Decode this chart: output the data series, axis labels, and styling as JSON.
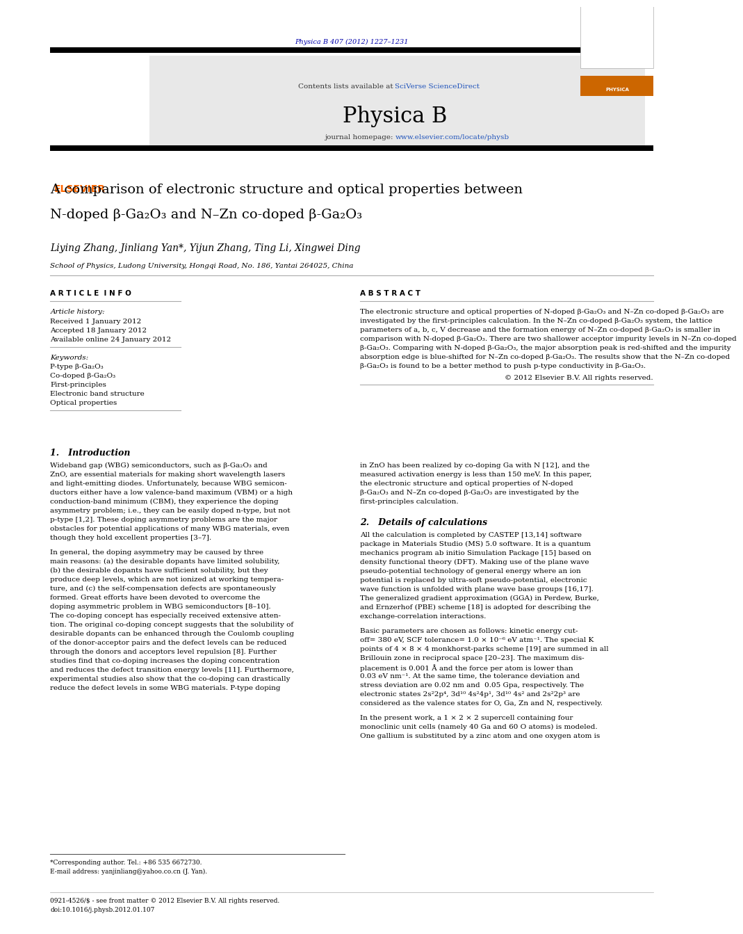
{
  "page_width": 9.92,
  "page_height": 13.23,
  "bg_color": "#ffffff",
  "header_journal_ref": "Physica B 407 (2012) 1227–1231",
  "header_journal_ref_color": "#0000aa",
  "journal_bg_color": "#e8e8e8",
  "journal_name": "Physica B",
  "journal_contents": "Contents lists available at",
  "sciverse_text": "SciVerse ScienceDirect",
  "title_line1": "A comparison of electronic structure and optical properties between",
  "title_line2": "N-doped β-Ga₂O₃ and N–Zn co-doped β-Ga₂O₃",
  "authors": "Liying Zhang, Jinliang Yan*, Yijun Zhang, Ting Li, Xingwei Ding",
  "affiliation": "School of Physics, Ludong University, Hongqi Road, No. 186, Yantai 264025, China",
  "article_info_title": "A R T I C L E  I N F O",
  "abstract_title": "A B S T R A C T",
  "article_history_label": "Article history:",
  "received": "Received 1 January 2012",
  "accepted": "Accepted 18 January 2012",
  "available": "Available online 24 January 2012",
  "keywords_label": "Keywords:",
  "keyword1": "P-type β-Ga₂O₃",
  "keyword2": "Co-doped β-Ga₂O₃",
  "keyword3": "First-principles",
  "keyword4": "Electronic band structure",
  "keyword5": "Optical properties",
  "copyright": "© 2012 Elsevier B.V. All rights reserved.",
  "section1_title": "1.   Introduction",
  "section2_title": "2.   Details of calculations",
  "footnote": "*Corresponding author. Tel.: +86 535 6672730.",
  "footnote_email": "E-mail address: yanjinliang@yahoo.co.cn (J. Yan).",
  "footer_line1": "0921-4526/$ - see front matter © 2012 Elsevier B.V. All rights reserved.",
  "footer_line2": "doi:10.1016/j.physb.2012.01.107",
  "abstract_lines": [
    "The electronic structure and optical properties of N-doped β-Ga₂O₃ and N–Zn co-doped β-Ga₂O₃ are",
    "investigated by the first-principles calculation. In the N–Zn co-doped β-Ga₂O₃ system, the lattice",
    "parameters of a, b, c, V decrease and the formation energy of N–Zn co-doped β-Ga₂O₃ is smaller in",
    "comparison with N-doped β-Ga₂O₃. There are two shallower acceptor impurity levels in N–Zn co-doped",
    "β-Ga₂O₃. Comparing with N-doped β-Ga₂O₃, the major absorption peak is red-shifted and the impurity",
    "absorption edge is blue-shifted for N–Zn co-doped β-Ga₂O₃. The results show that the N–Zn co-doped",
    "β-Ga₂O₃ is found to be a better method to push p-type conductivity in β-Ga₂O₃."
  ],
  "intro_col1_p1": [
    "Wideband gap (WBG) semiconductors, such as β-Ga₂O₃ and",
    "ZnO, are essential materials for making short wavelength lasers",
    "and light-emitting diodes. Unfortunately, because WBG semicon-",
    "ductors either have a low valence-band maximum (VBM) or a high",
    "conduction-band minimum (CBM), they experience the doping",
    "asymmetry problem; i.e., they can be easily doped n-type, but not",
    "p-type [1,2]. These doping asymmetry problems are the major",
    "obstacles for potential applications of many WBG materials, even",
    "though they hold excellent properties [3–7]."
  ],
  "intro_col1_p2": [
    "In general, the doping asymmetry may be caused by three",
    "main reasons: (a) the desirable dopants have limited solubility,",
    "(b) the desirable dopants have sufficient solubility, but they",
    "produce deep levels, which are not ionized at working tempera-",
    "ture, and (c) the self-compensation defects are spontaneously",
    "formed. Great efforts have been devoted to overcome the",
    "doping asymmetric problem in WBG semiconductors [8–10].",
    "The co-doping concept has especially received extensive atten-",
    "tion. The original co-doping concept suggests that the solubility of",
    "desirable dopants can be enhanced through the Coulomb coupling",
    "of the donor-acceptor pairs and the defect levels can be reduced",
    "through the donors and acceptors level repulsion [8]. Further",
    "studies find that co-doping increases the doping concentration",
    "and reduces the defect transition energy levels [11]. Furthermore,",
    "experimental studies also show that the co-doping can drastically",
    "reduce the defect levels in some WBG materials. P-type doping"
  ],
  "intro_col2_p1": [
    "in ZnO has been realized by co-doping Ga with N [12], and the",
    "measured activation energy is less than 150 meV. In this paper,",
    "the electronic structure and optical properties of N-doped",
    "β-Ga₂O₃ and N–Zn co-doped β-Ga₂O₃ are investigated by the",
    "first-principles calculation."
  ],
  "sec2_col2_p1": [
    "All the calculation is completed by CASTEP [13,14] software",
    "package in Materials Studio (MS) 5.0 software. It is a quantum",
    "mechanics program ab initio Simulation Package [15] based on",
    "density functional theory (DFT). Making use of the plane wave",
    "pseudo-potential technology of general energy where an ion",
    "potential is replaced by ultra-soft pseudo-potential, electronic",
    "wave function is unfolded with plane wave base groups [16,17].",
    "The generalized gradient approximation (GGA) in Perdew, Burke,",
    "and Ernzerhof (PBE) scheme [18] is adopted for describing the",
    "exchange-correlation interactions."
  ],
  "sec2_col2_p2": [
    "Basic parameters are chosen as follows: kinetic energy cut-",
    "off= 380 eV, SCF tolerance= 1.0 × 10⁻⁶ eV atm⁻¹. The special K",
    "points of 4 × 8 × 4 monkhorst-parks scheme [19] are summed in all",
    "Brillouin zone in reciprocal space [20–23]. The maximum dis-",
    "placement is 0.001 Å and the force per atom is lower than",
    "0.03 eV nm⁻¹. At the same time, the tolerance deviation and",
    "stress deviation are 0.02 nm and  0.05 Gpa, respectively. The",
    "electronic states 2s²2p⁴, 3d¹⁰ 4s²4p¹, 3d¹⁰ 4s² and 2s²2p³ are",
    "considered as the valence states for O, Ga, Zn and N, respectively."
  ],
  "sec2_col2_p3": [
    "In the present work, a 1 × 2 × 2 supercell containing four",
    "monoclinic unit cells (namely 40 Ga and 60 O atoms) is modeled.",
    "One gallium is substituted by a zinc atom and one oxygen atom is"
  ]
}
